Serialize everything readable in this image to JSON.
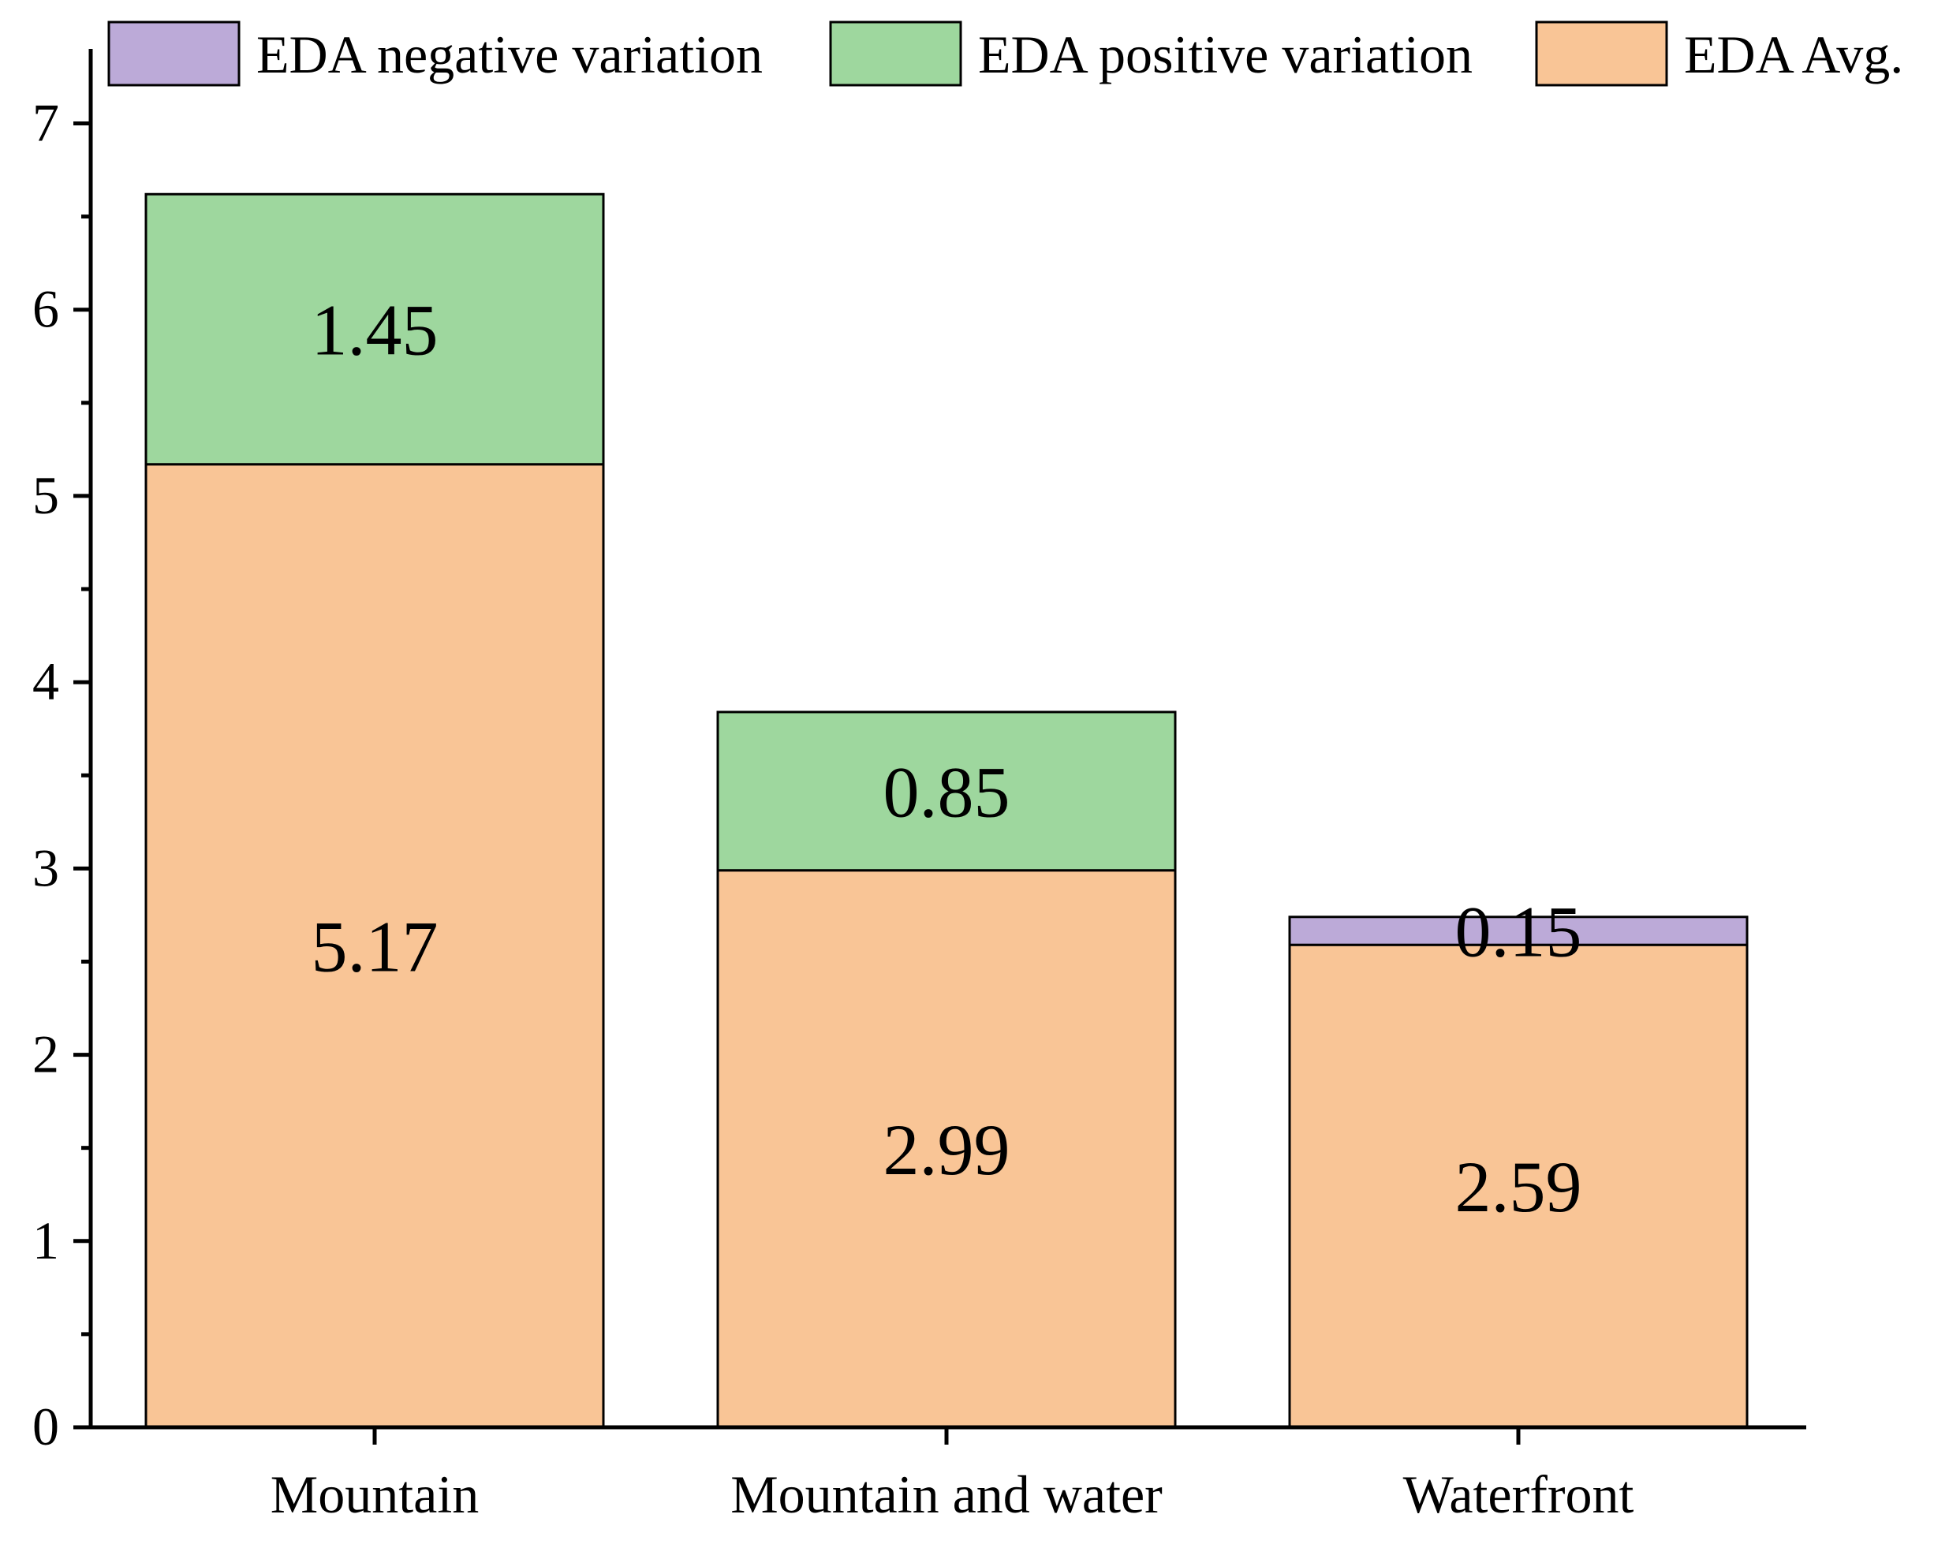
{
  "chart_data": {
    "type": "bar",
    "stacked": true,
    "title": "",
    "xlabel": "",
    "ylabel": "",
    "categories": [
      "Mountain",
      "Mountain and water",
      "Waterfront"
    ],
    "series": [
      {
        "name": "EDA Avg.",
        "color": "#F9C596",
        "values": [
          5.17,
          2.99,
          2.59
        ]
      },
      {
        "name": "EDA positive variation",
        "color": "#9ED79E",
        "values": [
          1.45,
          0.85,
          0
        ]
      },
      {
        "name": "EDA negative variation",
        "color": "#BCAAD8",
        "values": [
          0,
          0,
          0.15
        ]
      }
    ],
    "data_labels": [
      [
        "5.17",
        "2.99",
        "2.59"
      ],
      [
        "1.45",
        "0.85",
        ""
      ],
      [
        "",
        "",
        "0.15"
      ]
    ],
    "ylim": [
      0,
      7.4
    ],
    "yticks": [
      0,
      1,
      2,
      3,
      4,
      5,
      6,
      7
    ],
    "legend": {
      "placement": "top",
      "order": [
        "EDA negative variation",
        "EDA positive variation",
        "EDA Avg."
      ]
    },
    "grid": false
  }
}
